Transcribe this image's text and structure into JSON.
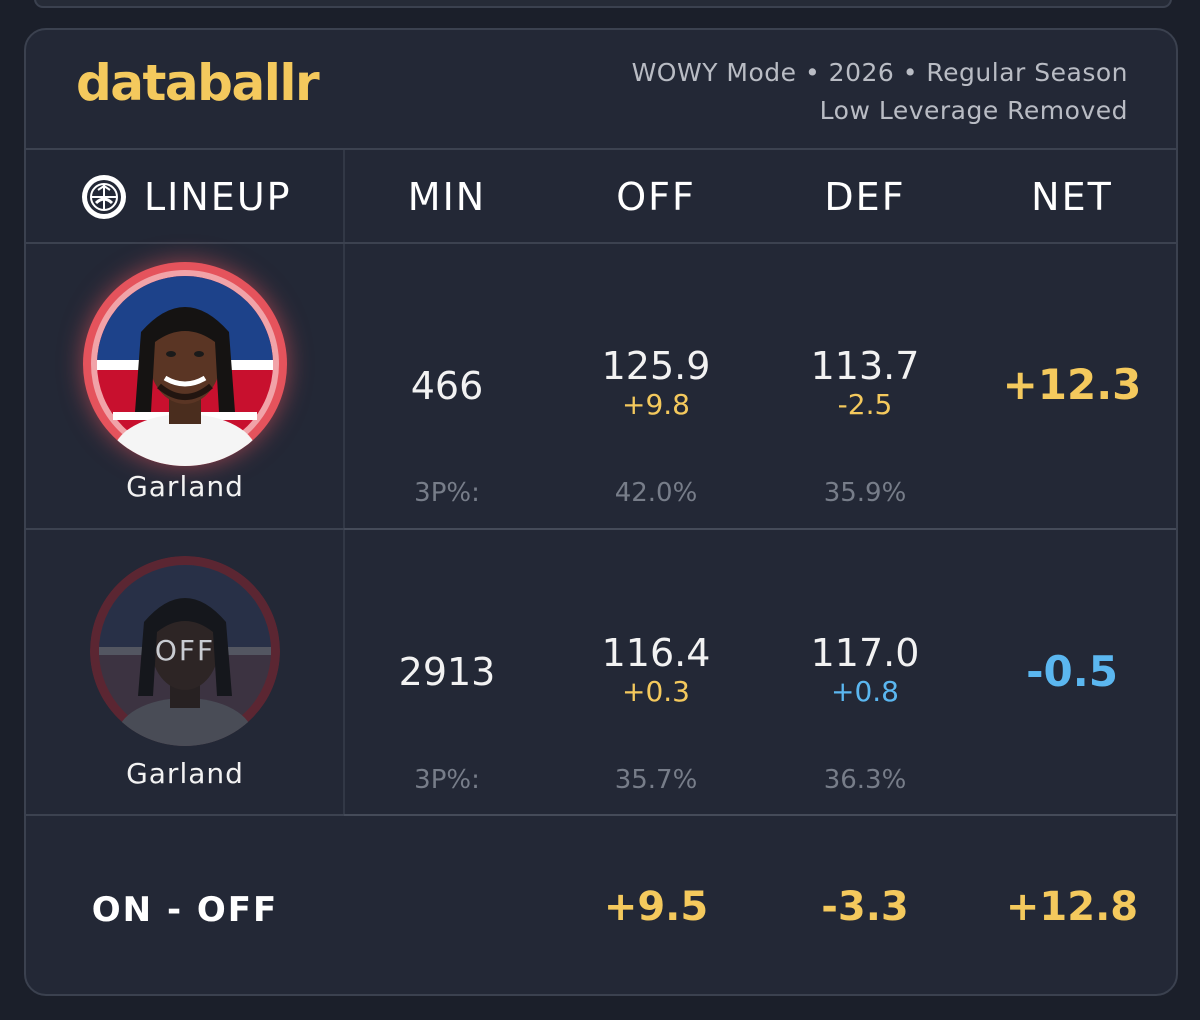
{
  "header": {
    "brand": "databallr",
    "subtitle_line1": "WOWY Mode • 2026 • Regular Season",
    "subtitle_line2": "Low Leverage Removed"
  },
  "columns": {
    "lineup": "LINEUP",
    "min": "MIN",
    "off": "OFF",
    "def": "DEF",
    "net": "NET"
  },
  "rows": [
    {
      "player": "Garland",
      "status": "on",
      "min": "466",
      "off": "125.9",
      "off_delta": "+9.8",
      "def": "113.7",
      "def_delta": "-2.5",
      "net": "+12.3",
      "three_pt_label": "3P%:",
      "off_3p": "42.0%",
      "def_3p": "35.9%"
    },
    {
      "player": "Garland",
      "status": "off",
      "overlay": "OFF",
      "min": "2913",
      "off": "116.4",
      "off_delta": "+0.3",
      "def": "117.0",
      "def_delta": "+0.8",
      "net": "-0.5",
      "three_pt_label": "3P%:",
      "off_3p": "35.7%",
      "def_3p": "36.3%"
    }
  ],
  "on_off": {
    "label": "ON - OFF",
    "off": "+9.5",
    "def": "-3.3",
    "net": "+12.8"
  },
  "colors": {
    "gold": "#f4c95d",
    "blue": "#5bb7f0",
    "background": "#232836"
  },
  "icons": {
    "lineup": "team-logo-icon",
    "avatar": "player-headshot"
  }
}
